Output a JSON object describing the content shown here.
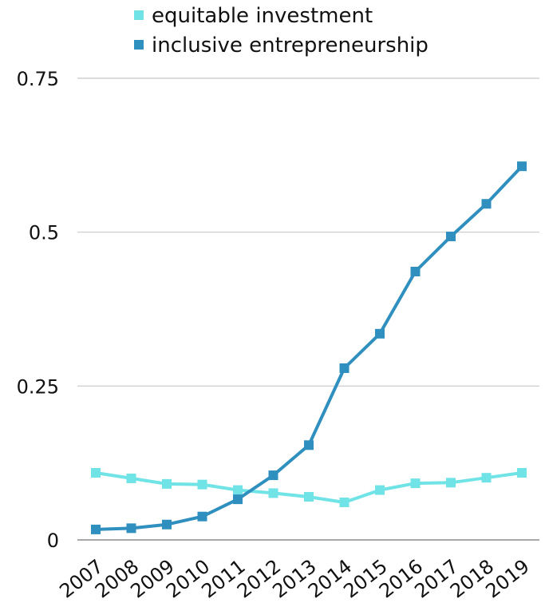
{
  "chart_data": {
    "type": "line",
    "title": "",
    "xlabel": "",
    "ylabel": "",
    "categories": [
      "2007",
      "2008",
      "2009",
      "2010",
      "2011",
      "2012",
      "2013",
      "2014",
      "2015",
      "2016",
      "2017",
      "2018",
      "2019"
    ],
    "series": [
      {
        "name": "equitable investment",
        "color": "#6fe3e6",
        "marker": "square",
        "values": [
          0.109,
          0.1,
          0.091,
          0.09,
          0.081,
          0.076,
          0.07,
          0.061,
          0.081,
          0.092,
          0.093,
          0.101,
          0.109
        ]
      },
      {
        "name": "inclusive entrepreneurship",
        "color": "#2f8fbf",
        "marker": "square",
        "values": [
          0.017,
          0.019,
          0.025,
          0.038,
          0.066,
          0.105,
          0.154,
          0.279,
          0.335,
          0.436,
          0.493,
          0.546,
          0.607
        ]
      }
    ],
    "y_ticks": [
      "0",
      "0.25",
      "0.5",
      "0.75"
    ],
    "y_tick_values": [
      0,
      0.25,
      0.5,
      0.75
    ],
    "ylim": [
      0,
      0.75
    ],
    "grid": true,
    "legend_position": "top"
  }
}
